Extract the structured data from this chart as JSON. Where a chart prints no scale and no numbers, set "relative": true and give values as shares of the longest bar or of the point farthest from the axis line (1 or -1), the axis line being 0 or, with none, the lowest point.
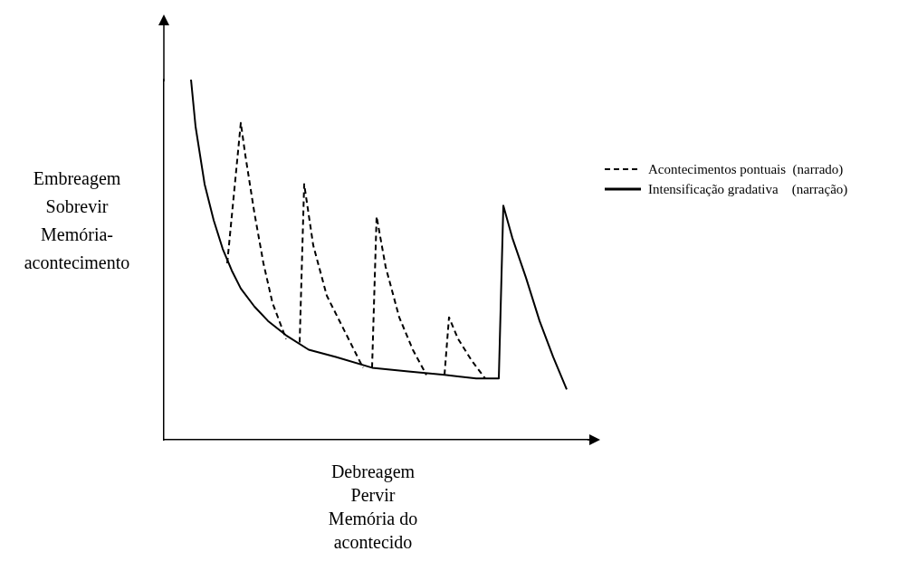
{
  "chart_data": {
    "type": "line",
    "relative": true,
    "xlabel": "Debreagem\nPervir\nMemória do\nacontecido",
    "ylabel": "Embreagem\nSobrevir\nMemória-\nacontecimento",
    "legend": "right",
    "marker": "none",
    "categories": [
      null,
      null,
      null,
      null,
      null,
      null,
      null,
      null,
      null,
      null,
      null,
      null,
      null,
      null,
      null,
      null,
      null,
      null,
      null,
      null,
      null,
      null,
      null,
      null,
      null,
      null,
      null,
      null,
      null,
      null,
      null,
      null,
      null,
      null,
      null,
      null,
      null,
      null,
      null,
      null,
      null,
      null,
      null,
      null,
      null,
      null,
      null,
      null,
      null,
      null,
      null,
      null,
      null,
      null,
      null,
      null,
      null,
      null,
      null,
      null,
      null,
      null,
      null,
      null,
      null,
      null,
      null,
      null,
      null,
      null,
      null,
      null,
      null,
      null,
      null,
      null,
      null,
      null,
      null,
      null,
      null,
      null,
      null,
      null,
      null,
      null,
      null,
      null,
      null,
      null,
      null,
      null,
      null,
      null,
      null
    ],
    "series": [
      {
        "name": "Acontecimentos pontuais  (narrado)",
        "color": "#000000",
        "line_style": "dashed",
        "values": [
          null,
          null,
          null,
          null,
          null,
          null,
          null,
          null,
          null,
          null,
          null,
          null,
          null,
          null,
          0.49,
          null,
          null,
          0.88,
          0.79,
          null,
          0.63,
          null,
          0.49,
          null,
          0.38,
          null,
          null,
          0.28,
          null,
          null,
          null,
          null,
          null,
          null,
          null,
          null,
          null,
          null,
          null,
          null,
          null,
          null,
          null,
          null,
          null,
          null,
          null,
          null,
          null,
          null,
          null,
          null,
          null,
          null,
          null,
          null,
          null,
          null,
          null,
          null,
          null,
          null,
          null,
          null,
          null,
          null,
          null,
          null,
          null,
          null,
          null,
          null,
          null,
          null,
          null,
          null,
          null,
          null,
          null,
          null,
          null,
          null,
          null,
          null,
          null,
          null,
          null,
          null,
          null,
          null,
          null,
          null,
          null,
          null,
          null
        ]
      },
      {
        "color": "#000000",
        "line_style": "dashed",
        "values": [
          null,
          null,
          null,
          null,
          null,
          null,
          null,
          null,
          null,
          null,
          null,
          null,
          null,
          null,
          null,
          null,
          null,
          null,
          null,
          null,
          null,
          null,
          null,
          null,
          null,
          null,
          null,
          null,
          null,
          null,
          0.27,
          0.71,
          null,
          0.54,
          null,
          null,
          0.4,
          null,
          null,
          null,
          0.3,
          null,
          null,
          null,
          0.2,
          null,
          null,
          null,
          null,
          null,
          null,
          null,
          null,
          null,
          null,
          null,
          null,
          null,
          null,
          null,
          null,
          null,
          null,
          null,
          null,
          null,
          null,
          null,
          null,
          null,
          null,
          null,
          null,
          null,
          null,
          null,
          null,
          null,
          null,
          null,
          null,
          null,
          null,
          null,
          null,
          null,
          null,
          null,
          null,
          null,
          null,
          null,
          null,
          null,
          null
        ]
      },
      {
        "color": "#000000",
        "line_style": "dashed",
        "values": [
          null,
          null,
          null,
          null,
          null,
          null,
          null,
          null,
          null,
          null,
          null,
          null,
          null,
          null,
          null,
          null,
          null,
          null,
          null,
          null,
          null,
          null,
          null,
          null,
          null,
          null,
          null,
          null,
          null,
          null,
          null,
          null,
          null,
          null,
          null,
          null,
          null,
          null,
          null,
          null,
          null,
          null,
          null,
          null,
          null,
          null,
          0.2,
          0.62,
          null,
          0.48,
          null,
          null,
          0.34,
          null,
          null,
          0.25,
          null,
          null,
          0.18,
          null,
          null,
          null,
          null,
          null,
          null,
          null,
          null,
          null,
          null,
          null,
          null,
          null,
          null,
          null,
          null,
          null,
          null,
          null,
          null,
          null,
          null,
          null,
          null,
          null,
          null,
          null,
          null,
          null,
          null,
          null,
          null,
          null,
          null,
          null,
          null
        ]
      },
      {
        "color": "#000000",
        "line_style": "dashed",
        "values": [
          null,
          null,
          null,
          null,
          null,
          null,
          null,
          null,
          null,
          null,
          null,
          null,
          null,
          null,
          null,
          null,
          null,
          null,
          null,
          null,
          null,
          null,
          null,
          null,
          null,
          null,
          null,
          null,
          null,
          null,
          null,
          null,
          null,
          null,
          null,
          null,
          null,
          null,
          null,
          null,
          null,
          null,
          null,
          null,
          null,
          null,
          null,
          null,
          null,
          null,
          null,
          null,
          null,
          null,
          null,
          null,
          null,
          null,
          null,
          null,
          null,
          null,
          0.18,
          0.34,
          null,
          0.28,
          null,
          null,
          0.22,
          null,
          null,
          0.17,
          null,
          null,
          null,
          null,
          null,
          null,
          null,
          null,
          null,
          null,
          null,
          null,
          null,
          null,
          null,
          null,
          null,
          null,
          null,
          null,
          null,
          null,
          null
        ]
      },
      {
        "name": "Intensificação gradativa    (narração)",
        "color": "#000000",
        "line_style": "solid",
        "values": [
          null,
          null,
          null,
          null,
          null,
          null,
          1.0,
          0.87,
          null,
          0.71,
          null,
          0.61,
          null,
          0.53,
          null,
          0.47,
          null,
          0.42,
          null,
          null,
          0.37,
          null,
          null,
          0.33,
          null,
          null,
          null,
          0.29,
          null,
          null,
          null,
          null,
          0.25,
          null,
          null,
          null,
          null,
          null,
          0.23,
          null,
          null,
          null,
          null,
          null,
          null,
          null,
          0.2,
          null,
          null,
          null,
          null,
          null,
          null,
          null,
          0.19,
          null,
          null,
          null,
          null,
          null,
          null,
          null,
          0.18,
          null,
          null,
          null,
          null,
          null,
          null,
          0.17,
          null,
          null,
          null,
          null,
          0.17,
          0.65,
          null,
          0.56,
          null,
          null,
          0.45,
          null,
          null,
          0.33,
          null,
          null,
          0.23,
          null,
          null,
          0.14,
          null,
          null,
          null,
          null,
          null
        ]
      }
    ]
  }
}
